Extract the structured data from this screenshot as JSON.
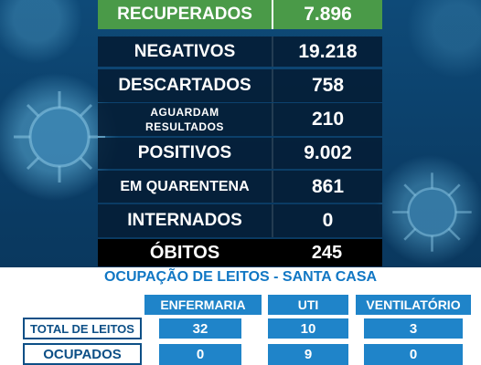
{
  "stats": [
    {
      "id": "recuperados",
      "label": "RECUPERADOS",
      "value": "7.896"
    },
    {
      "id": "negativos",
      "label": "NEGATIVOS",
      "value": "19.218"
    },
    {
      "id": "descartados",
      "label": "DESCARTADOS",
      "value": "758"
    },
    {
      "id": "aguardam",
      "label_line1": "AGUARDAM",
      "label_line2": "RESULTADOS",
      "value": "210"
    },
    {
      "id": "positivos",
      "label": "POSITIVOS",
      "value": "9.002"
    },
    {
      "id": "quarentena",
      "label": "EM QUARENTENA",
      "value": "861"
    },
    {
      "id": "internados",
      "label": "INTERNADOS",
      "value": "0"
    },
    {
      "id": "obitos",
      "label": "ÓBITOS",
      "value": "245"
    }
  ],
  "leitos": {
    "title": "OCUPAÇÃO DE LEITOS - SANTA CASA",
    "columns": [
      "ENFERMARIA",
      "UTI",
      "VENTILATÓRIO"
    ],
    "rows": [
      {
        "label": "TOTAL DE LEITOS",
        "values": [
          "32",
          "10",
          "3"
        ]
      },
      {
        "label": "OCUPADOS",
        "values": [
          "0",
          "9",
          "0"
        ]
      }
    ]
  },
  "colors": {
    "background": "#0b3f6a",
    "recuperados": "#4a9a48",
    "dark_row": "#041c34",
    "obitos": "#000000",
    "accent_blue": "#1f84c9",
    "title_blue": "#1177c4"
  },
  "decor": [
    "virus-icon"
  ]
}
